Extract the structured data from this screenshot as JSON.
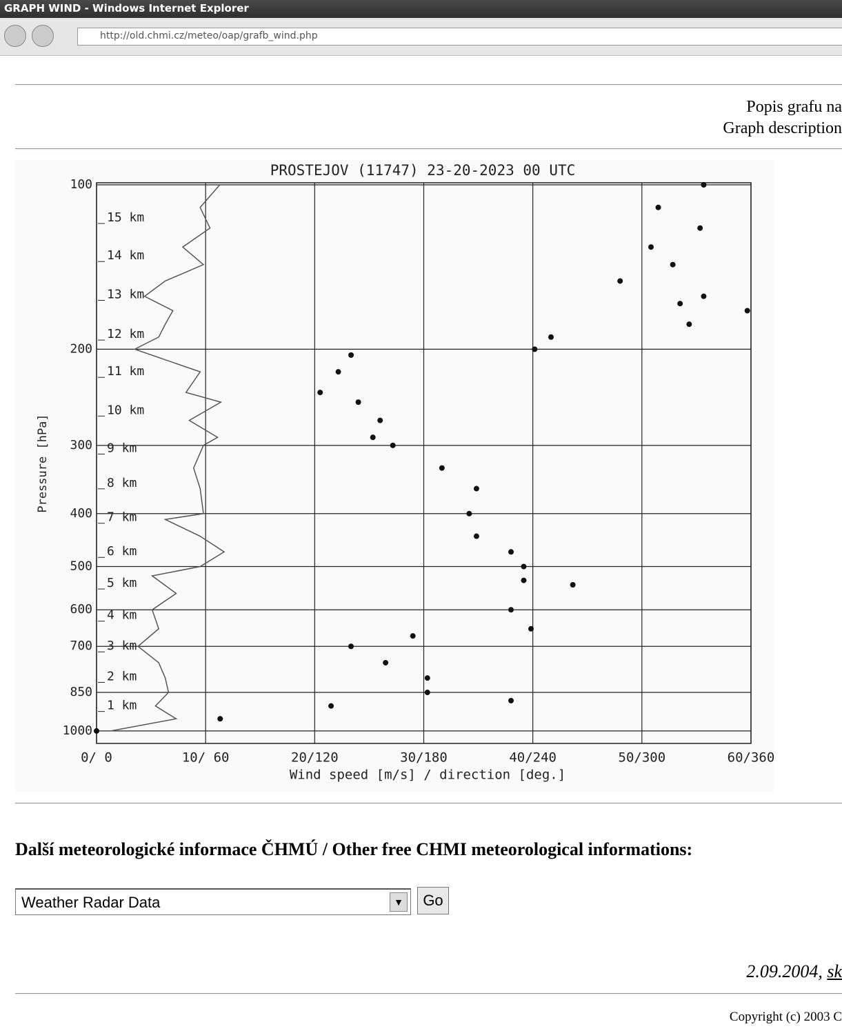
{
  "window": {
    "title": "GRAPH WIND - Windows Internet Explorer",
    "url": "http://old.chmi.cz/meteo/oap/grafb_wind.php"
  },
  "page": {
    "description_lines": [
      "Popis grafu na",
      "Graph description"
    ],
    "heading": "Další meteorologické informace ČHMÚ / Other free CHMI meteorological informations:",
    "select_value": "Weather Radar Data",
    "button": "Go",
    "date": "2.09.2004, ",
    "date_link": "sk",
    "copyright": "Copyright (c) 2003 C"
  },
  "chart_data": {
    "type": "wind-profile",
    "title": "PROSTEJOV (11747)    23-20-2023  00  UTC",
    "ylabel": "Pressure [hPa]",
    "xlabel": "Wind  speed [m/s]  /  direction [deg.]",
    "xlim": [
      0,
      60
    ],
    "x2lim": [
      0,
      360
    ],
    "xticks": [
      {
        "value": 0,
        "label": "0/  0"
      },
      {
        "value": 10,
        "label": "10/ 60"
      },
      {
        "value": 20,
        "label": "20/120"
      },
      {
        "value": 30,
        "label": "30/180"
      },
      {
        "value": 40,
        "label": "40/240"
      },
      {
        "value": 50,
        "label": "50/300"
      },
      {
        "value": 60,
        "label": "60/360"
      }
    ],
    "ylim": [
      100,
      1054
    ],
    "log_y": true,
    "y_inverted": true,
    "yticks": [
      100,
      200,
      300,
      400,
      500,
      600,
      700,
      850,
      1000
    ],
    "grid": true,
    "height_labels": [
      {
        "value": 115,
        "label": "15 km"
      },
      {
        "value": 135,
        "label": "14 km"
      },
      {
        "value": 159,
        "label": "13 km"
      },
      {
        "value": 188,
        "label": "12 km"
      },
      {
        "value": 220,
        "label": "11 km"
      },
      {
        "value": 259,
        "label": "10 km"
      },
      {
        "value": 304,
        "label": "9 km"
      },
      {
        "value": 352,
        "label": "8 km"
      },
      {
        "value": 407,
        "label": "7 km"
      },
      {
        "value": 470,
        "label": "6 km"
      },
      {
        "value": 537,
        "label": "5 km"
      },
      {
        "value": 615,
        "label": "4 km"
      },
      {
        "value": 700,
        "label": "3 km"
      },
      {
        "value": 796,
        "label": "2 km"
      },
      {
        "value": 900,
        "label": "1 km"
      }
    ],
    "series": [
      {
        "style": "line",
        "color": "#555555",
        "pressure": [
          100,
          110,
          120,
          130,
          140,
          150,
          160,
          170,
          180,
          190,
          200,
          220,
          240,
          250,
          270,
          290,
          300,
          330,
          360,
          400,
          410,
          440,
          470,
          500,
          520,
          560,
          600,
          650,
          700,
          750,
          800,
          850,
          900,
          950,
          1000
        ],
        "values": [
          11.3,
          9.5,
          10.4,
          7.9,
          9.8,
          6.3,
          4.4,
          7.0,
          6.3,
          5.7,
          3.5,
          9.5,
          8.2,
          11.4,
          8.5,
          11.1,
          9.8,
          8.9,
          9.5,
          9.8,
          6.3,
          9.5,
          11.7,
          9.5,
          5.1,
          7.3,
          5.1,
          5.7,
          3.8,
          5.7,
          6.3,
          6.6,
          5.4,
          7.3,
          1.3
        ]
      },
      {
        "style": "dots",
        "color": "#111111",
        "axis": "x2",
        "pressure": [
          100,
          110,
          120,
          130,
          140,
          150,
          160,
          165,
          170,
          180,
          190,
          200,
          205,
          220,
          240,
          250,
          270,
          290,
          300,
          330,
          360,
          400,
          440,
          470,
          500,
          530,
          540,
          600,
          650,
          670,
          700,
          750,
          800,
          850,
          880,
          900,
          950,
          1000
        ],
        "values": [
          334,
          309,
          332,
          305,
          317,
          288,
          334,
          321,
          358,
          326,
          250,
          241,
          140,
          133,
          123,
          144,
          156,
          152,
          163,
          190,
          209,
          205,
          209,
          228,
          235,
          235,
          262,
          228,
          239,
          174,
          140,
          159,
          182,
          182,
          228,
          129,
          68,
          0
        ]
      }
    ]
  }
}
